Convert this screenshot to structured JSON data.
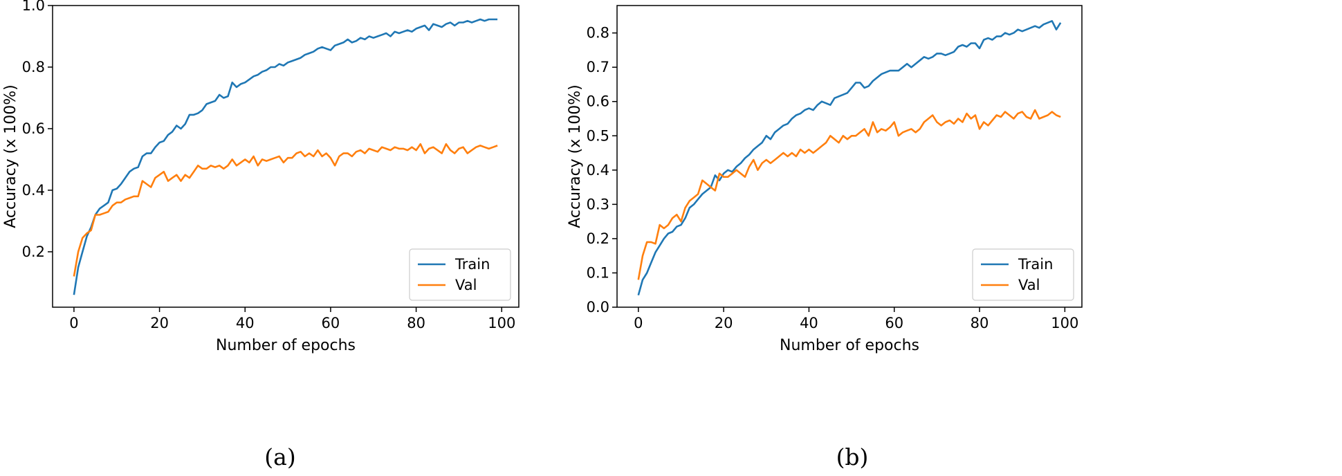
{
  "chart_data": [
    {
      "type": "line",
      "caption": "(a)",
      "xlabel": "Number of epochs",
      "ylabel": "Accuracy (x 100%)",
      "xlim": [
        -5,
        104
      ],
      "ylim": [
        0.02,
        1.0
      ],
      "xticks": [
        0,
        20,
        40,
        60,
        80,
        100
      ],
      "yticks": [
        0.2,
        0.4,
        0.6,
        0.8,
        1.0
      ],
      "ytick_decimals": 1,
      "legend": "bottom-right",
      "x": [
        0,
        1,
        2,
        3,
        4,
        5,
        6,
        7,
        8,
        9,
        10,
        11,
        12,
        13,
        14,
        15,
        16,
        17,
        18,
        19,
        20,
        21,
        22,
        23,
        24,
        25,
        26,
        27,
        28,
        29,
        30,
        31,
        32,
        33,
        34,
        35,
        36,
        37,
        38,
        39,
        40,
        41,
        42,
        43,
        44,
        45,
        46,
        47,
        48,
        49,
        50,
        51,
        52,
        53,
        54,
        55,
        56,
        57,
        58,
        59,
        60,
        61,
        62,
        63,
        64,
        65,
        66,
        67,
        68,
        69,
        70,
        71,
        72,
        73,
        74,
        75,
        76,
        77,
        78,
        79,
        80,
        81,
        82,
        83,
        84,
        85,
        86,
        87,
        88,
        89,
        90,
        91,
        92,
        93,
        94,
        95,
        96,
        97,
        98,
        99
      ],
      "series": [
        {
          "name": "Train",
          "color": "#1f77b4",
          "values": [
            0.06,
            0.15,
            0.2,
            0.25,
            0.28,
            0.32,
            0.34,
            0.35,
            0.36,
            0.4,
            0.405,
            0.42,
            0.44,
            0.46,
            0.47,
            0.475,
            0.51,
            0.52,
            0.52,
            0.54,
            0.555,
            0.56,
            0.58,
            0.59,
            0.61,
            0.6,
            0.615,
            0.645,
            0.645,
            0.65,
            0.66,
            0.68,
            0.685,
            0.69,
            0.71,
            0.7,
            0.705,
            0.75,
            0.735,
            0.745,
            0.75,
            0.76,
            0.77,
            0.775,
            0.785,
            0.79,
            0.8,
            0.8,
            0.81,
            0.805,
            0.815,
            0.82,
            0.825,
            0.83,
            0.84,
            0.845,
            0.85,
            0.86,
            0.865,
            0.86,
            0.855,
            0.87,
            0.875,
            0.88,
            0.89,
            0.88,
            0.885,
            0.895,
            0.89,
            0.9,
            0.895,
            0.9,
            0.905,
            0.91,
            0.9,
            0.915,
            0.91,
            0.915,
            0.92,
            0.915,
            0.925,
            0.93,
            0.935,
            0.92,
            0.94,
            0.935,
            0.93,
            0.94,
            0.945,
            0.935,
            0.945,
            0.945,
            0.95,
            0.945,
            0.95,
            0.955,
            0.95,
            0.955,
            0.955,
            0.955
          ]
        },
        {
          "name": "Val",
          "color": "#ff7f0e",
          "values": [
            0.12,
            0.2,
            0.245,
            0.26,
            0.27,
            0.32,
            0.32,
            0.325,
            0.33,
            0.35,
            0.36,
            0.36,
            0.37,
            0.375,
            0.38,
            0.38,
            0.43,
            0.42,
            0.41,
            0.44,
            0.45,
            0.46,
            0.43,
            0.44,
            0.45,
            0.43,
            0.45,
            0.44,
            0.46,
            0.48,
            0.47,
            0.47,
            0.48,
            0.475,
            0.48,
            0.47,
            0.48,
            0.5,
            0.48,
            0.49,
            0.5,
            0.49,
            0.51,
            0.48,
            0.5,
            0.495,
            0.5,
            0.505,
            0.51,
            0.49,
            0.505,
            0.505,
            0.52,
            0.525,
            0.51,
            0.52,
            0.51,
            0.53,
            0.51,
            0.52,
            0.505,
            0.48,
            0.51,
            0.52,
            0.52,
            0.51,
            0.525,
            0.53,
            0.52,
            0.535,
            0.53,
            0.525,
            0.54,
            0.535,
            0.53,
            0.54,
            0.535,
            0.535,
            0.53,
            0.54,
            0.53,
            0.55,
            0.52,
            0.535,
            0.54,
            0.53,
            0.52,
            0.55,
            0.53,
            0.52,
            0.535,
            0.54,
            0.52,
            0.53,
            0.54,
            0.545,
            0.54,
            0.535,
            0.54,
            0.545
          ]
        }
      ]
    },
    {
      "type": "line",
      "caption": "(b)",
      "xlabel": "Number of epochs",
      "ylabel": "Accuracy (x 100%)",
      "xlim": [
        -5,
        104
      ],
      "ylim": [
        0.0,
        0.88
      ],
      "xticks": [
        0,
        20,
        40,
        60,
        80,
        100
      ],
      "yticks": [
        0.0,
        0.1,
        0.2,
        0.3,
        0.4,
        0.5,
        0.6,
        0.7,
        0.8
      ],
      "ytick_decimals": 1,
      "legend": "bottom-right",
      "x": [
        0,
        1,
        2,
        3,
        4,
        5,
        6,
        7,
        8,
        9,
        10,
        11,
        12,
        13,
        14,
        15,
        16,
        17,
        18,
        19,
        20,
        21,
        22,
        23,
        24,
        25,
        26,
        27,
        28,
        29,
        30,
        31,
        32,
        33,
        34,
        35,
        36,
        37,
        38,
        39,
        40,
        41,
        42,
        43,
        44,
        45,
        46,
        47,
        48,
        49,
        50,
        51,
        52,
        53,
        54,
        55,
        56,
        57,
        58,
        59,
        60,
        61,
        62,
        63,
        64,
        65,
        66,
        67,
        68,
        69,
        70,
        71,
        72,
        73,
        74,
        75,
        76,
        77,
        78,
        79,
        80,
        81,
        82,
        83,
        84,
        85,
        86,
        87,
        88,
        89,
        90,
        91,
        92,
        93,
        94,
        95,
        96,
        97,
        98,
        99
      ],
      "series": [
        {
          "name": "Train",
          "color": "#1f77b4",
          "values": [
            0.035,
            0.08,
            0.1,
            0.13,
            0.16,
            0.18,
            0.2,
            0.215,
            0.22,
            0.235,
            0.24,
            0.26,
            0.29,
            0.3,
            0.315,
            0.33,
            0.34,
            0.35,
            0.385,
            0.37,
            0.39,
            0.4,
            0.395,
            0.41,
            0.42,
            0.435,
            0.445,
            0.46,
            0.47,
            0.48,
            0.5,
            0.49,
            0.51,
            0.52,
            0.53,
            0.535,
            0.55,
            0.56,
            0.565,
            0.575,
            0.58,
            0.575,
            0.59,
            0.6,
            0.595,
            0.59,
            0.61,
            0.615,
            0.62,
            0.625,
            0.64,
            0.655,
            0.655,
            0.64,
            0.645,
            0.66,
            0.67,
            0.68,
            0.685,
            0.69,
            0.69,
            0.69,
            0.7,
            0.71,
            0.7,
            0.71,
            0.72,
            0.73,
            0.725,
            0.73,
            0.74,
            0.74,
            0.735,
            0.74,
            0.745,
            0.76,
            0.765,
            0.76,
            0.77,
            0.77,
            0.755,
            0.78,
            0.785,
            0.78,
            0.79,
            0.79,
            0.8,
            0.795,
            0.8,
            0.81,
            0.805,
            0.81,
            0.815,
            0.82,
            0.815,
            0.825,
            0.83,
            0.835,
            0.81,
            0.83
          ]
        },
        {
          "name": "Val",
          "color": "#ff7f0e",
          "values": [
            0.08,
            0.15,
            0.19,
            0.19,
            0.185,
            0.24,
            0.23,
            0.24,
            0.26,
            0.27,
            0.25,
            0.29,
            0.31,
            0.32,
            0.33,
            0.37,
            0.36,
            0.35,
            0.34,
            0.39,
            0.38,
            0.38,
            0.39,
            0.4,
            0.39,
            0.38,
            0.41,
            0.43,
            0.4,
            0.42,
            0.43,
            0.42,
            0.43,
            0.44,
            0.45,
            0.44,
            0.45,
            0.44,
            0.46,
            0.45,
            0.46,
            0.45,
            0.46,
            0.47,
            0.48,
            0.5,
            0.49,
            0.48,
            0.5,
            0.49,
            0.5,
            0.5,
            0.51,
            0.52,
            0.5,
            0.54,
            0.51,
            0.52,
            0.515,
            0.525,
            0.54,
            0.5,
            0.51,
            0.515,
            0.52,
            0.51,
            0.52,
            0.54,
            0.55,
            0.56,
            0.54,
            0.53,
            0.54,
            0.545,
            0.535,
            0.55,
            0.54,
            0.565,
            0.55,
            0.56,
            0.52,
            0.54,
            0.53,
            0.545,
            0.56,
            0.555,
            0.57,
            0.56,
            0.55,
            0.565,
            0.57,
            0.555,
            0.55,
            0.575,
            0.55,
            0.555,
            0.56,
            0.57,
            0.56,
            0.555
          ]
        }
      ]
    }
  ]
}
